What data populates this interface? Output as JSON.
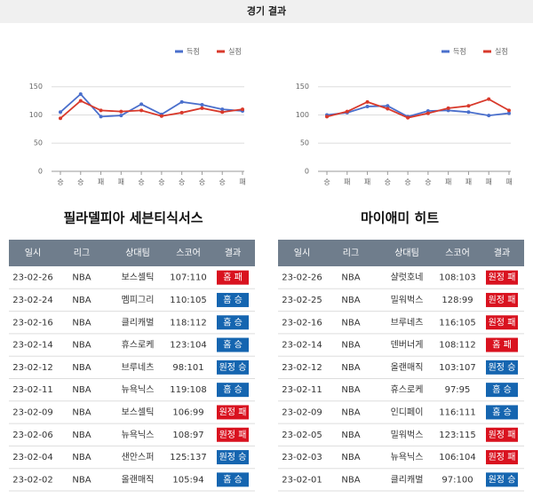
{
  "header": {
    "title": "경기 결과"
  },
  "chart_data": [
    {
      "type": "line",
      "categories": [
        "승",
        "승",
        "패",
        "패",
        "승",
        "승",
        "승",
        "승",
        "승",
        "패"
      ],
      "series": [
        {
          "name": "득점",
          "color": "#4a6fcc",
          "values": [
            105,
            137,
            97,
            99,
            119,
            101,
            123,
            118,
            110,
            107
          ]
        },
        {
          "name": "실점",
          "color": "#d8392b",
          "values": [
            94,
            125,
            108,
            106,
            108,
            98,
            104,
            112,
            105,
            110
          ]
        }
      ],
      "ylim": [
        0,
        170
      ],
      "yticks": [
        0,
        50,
        100,
        150
      ],
      "grid": true
    },
    {
      "type": "line",
      "categories": [
        "승",
        "패",
        "패",
        "승",
        "승",
        "승",
        "패",
        "패",
        "패",
        "패"
      ],
      "series": [
        {
          "name": "득점",
          "color": "#4a6fcc",
          "values": [
            100,
            104,
            115,
            116,
            97,
            107,
            108,
            105,
            99,
            103
          ]
        },
        {
          "name": "실점",
          "color": "#d8392b",
          "values": [
            97,
            106,
            123,
            111,
            95,
            103,
            112,
            116,
            128,
            108
          ]
        }
      ],
      "ylim": [
        0,
        170
      ],
      "yticks": [
        0,
        50,
        100,
        150
      ],
      "grid": true
    }
  ],
  "teams": [
    {
      "name": "필라델피아 세븐티식서스"
    },
    {
      "name": "마이애미 히트"
    }
  ],
  "tables": [
    {
      "columns": [
        "일시",
        "리그",
        "상대팀",
        "스코어",
        "결과"
      ],
      "rows": [
        [
          "23-02-26",
          "NBA",
          "보스셀틱",
          "107:110",
          "홈 패"
        ],
        [
          "23-02-24",
          "NBA",
          "멤피그리",
          "110:105",
          "홈 승"
        ],
        [
          "23-02-16",
          "NBA",
          "클리캐벌",
          "118:112",
          "홈 승"
        ],
        [
          "23-02-14",
          "NBA",
          "휴스로케",
          "123:104",
          "홈 승"
        ],
        [
          "23-02-12",
          "NBA",
          "브루네츠",
          "98:101",
          "원정 승"
        ],
        [
          "23-02-11",
          "NBA",
          "뉴욕닉스",
          "119:108",
          "홈 승"
        ],
        [
          "23-02-09",
          "NBA",
          "보스셀틱",
          "106:99",
          "원정 패"
        ],
        [
          "23-02-06",
          "NBA",
          "뉴욕닉스",
          "108:97",
          "원정 패"
        ],
        [
          "23-02-04",
          "NBA",
          "샌안스퍼",
          "125:137",
          "원정 승"
        ],
        [
          "23-02-02",
          "NBA",
          "올랜매직",
          "105:94",
          "홈 승"
        ]
      ],
      "badge_colors": [
        "#d9121f",
        "#1565b0",
        "#1565b0",
        "#1565b0",
        "#1565b0",
        "#1565b0",
        "#d9121f",
        "#d9121f",
        "#1565b0",
        "#1565b0"
      ]
    },
    {
      "columns": [
        "일시",
        "리그",
        "상대팀",
        "스코어",
        "결과"
      ],
      "rows": [
        [
          "23-02-26",
          "NBA",
          "샬럿호네",
          "108:103",
          "원정 패"
        ],
        [
          "23-02-25",
          "NBA",
          "밀워벅스",
          "128:99",
          "원정 패"
        ],
        [
          "23-02-16",
          "NBA",
          "브루네츠",
          "116:105",
          "원정 패"
        ],
        [
          "23-02-14",
          "NBA",
          "덴버너게",
          "108:112",
          "홈 패"
        ],
        [
          "23-02-12",
          "NBA",
          "올랜매직",
          "103:107",
          "원정 승"
        ],
        [
          "23-02-11",
          "NBA",
          "휴스로케",
          "97:95",
          "홈 승"
        ],
        [
          "23-02-09",
          "NBA",
          "인디페이",
          "116:111",
          "홈 승"
        ],
        [
          "23-02-05",
          "NBA",
          "밀워벅스",
          "123:115",
          "원정 패"
        ],
        [
          "23-02-03",
          "NBA",
          "뉴욕닉스",
          "106:104",
          "원정 패"
        ],
        [
          "23-02-01",
          "NBA",
          "클리캐벌",
          "97:100",
          "원정 승"
        ]
      ],
      "badge_colors": [
        "#d9121f",
        "#d9121f",
        "#d9121f",
        "#d9121f",
        "#1565b0",
        "#1565b0",
        "#1565b0",
        "#d9121f",
        "#d9121f",
        "#1565b0"
      ]
    }
  ]
}
